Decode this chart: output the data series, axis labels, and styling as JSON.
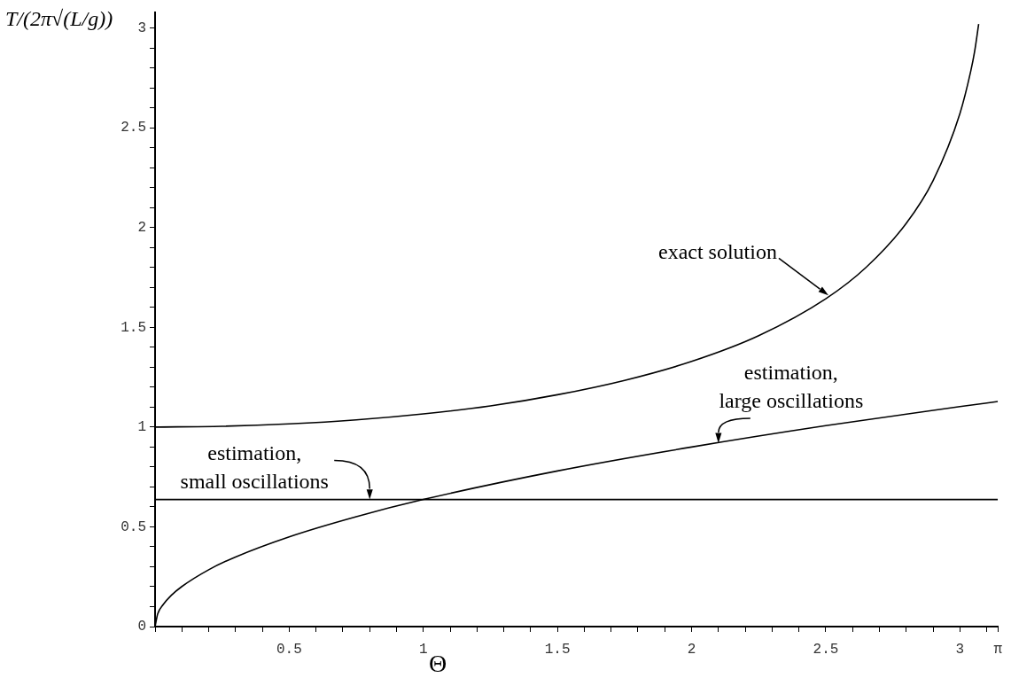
{
  "chart_data": {
    "type": "line",
    "ylabel": "T/(2π√(L/g))",
    "xlabel": "Θ",
    "xlim": [
      0,
      3.1416
    ],
    "ylim": [
      0,
      3.08
    ],
    "xticks": [
      {
        "value": 0,
        "label": null
      },
      {
        "value": 0.1,
        "label": null
      },
      {
        "value": 0.2,
        "label": null
      },
      {
        "value": 0.3,
        "label": null
      },
      {
        "value": 0.4,
        "label": null
      },
      0.5,
      {
        "value": 0.6,
        "label": null
      },
      {
        "value": 0.7,
        "label": null
      },
      {
        "value": 0.8,
        "label": null
      },
      {
        "value": 0.9,
        "label": null
      },
      1,
      {
        "value": 1.1,
        "label": null
      },
      {
        "value": 1.2,
        "label": null
      },
      {
        "value": 1.3,
        "label": null
      },
      {
        "value": 1.4,
        "label": null
      },
      1.5,
      {
        "value": 1.6,
        "label": null
      },
      {
        "value": 1.7,
        "label": null
      },
      {
        "value": 1.8,
        "label": null
      },
      {
        "value": 1.9,
        "label": null
      },
      2,
      {
        "value": 2.1,
        "label": null
      },
      {
        "value": 2.2,
        "label": null
      },
      {
        "value": 2.3,
        "label": null
      },
      {
        "value": 2.4,
        "label": null
      },
      2.5,
      {
        "value": 2.6,
        "label": null
      },
      {
        "value": 2.7,
        "label": null
      },
      {
        "value": 2.8,
        "label": null
      },
      {
        "value": 2.9,
        "label": null
      },
      3,
      {
        "value": 3.1,
        "label": null
      },
      {
        "value": 3.1416,
        "label": "π"
      }
    ],
    "yticks": [
      0,
      {
        "value": 0.1,
        "label": null
      },
      {
        "value": 0.2,
        "label": null
      },
      {
        "value": 0.3,
        "label": null
      },
      {
        "value": 0.4,
        "label": null
      },
      0.5,
      {
        "value": 0.6,
        "label": null
      },
      {
        "value": 0.7,
        "label": null
      },
      {
        "value": 0.8,
        "label": null
      },
      {
        "value": 0.9,
        "label": null
      },
      1,
      {
        "value": 1.1,
        "label": null
      },
      {
        "value": 1.2,
        "label": null
      },
      {
        "value": 1.3,
        "label": null
      },
      {
        "value": 1.4,
        "label": null
      },
      1.5,
      {
        "value": 1.6,
        "label": null
      },
      {
        "value": 1.7,
        "label": null
      },
      {
        "value": 1.8,
        "label": null
      },
      {
        "value": 1.9,
        "label": null
      },
      2,
      {
        "value": 2.1,
        "label": null
      },
      {
        "value": 2.2,
        "label": null
      },
      {
        "value": 2.3,
        "label": null
      },
      {
        "value": 2.4,
        "label": null
      },
      2.5,
      {
        "value": 2.6,
        "label": null
      },
      {
        "value": 2.7,
        "label": null
      },
      {
        "value": 2.8,
        "label": null
      },
      {
        "value": 2.9,
        "label": null
      },
      3
    ],
    "line_style": "solid",
    "series": [
      {
        "color": "#000000",
        "x": [
          0,
          0.25,
          0.5,
          0.75,
          1,
          1.25,
          1.5,
          1.75,
          2,
          2.25,
          2.5,
          2.65,
          2.8,
          2.9,
          3,
          3.04,
          3.055,
          3.07
        ],
        "values": [
          1,
          1.004,
          1.016,
          1.036,
          1.066,
          1.106,
          1.162,
          1.234,
          1.329,
          1.458,
          1.643,
          1.8,
          2.021,
          2.235,
          2.571,
          2.781,
          2.883,
          3.02
        ]
      },
      {
        "color": "#000000",
        "x": [
          0,
          0.01,
          0.03,
          0.06,
          0.1,
          0.2,
          0.3,
          0.5,
          0.75,
          1,
          1.5,
          2,
          2.5,
          3,
          3.1416
        ],
        "values": [
          0,
          0.064,
          0.11,
          0.156,
          0.201,
          0.285,
          0.349,
          0.45,
          0.551,
          0.637,
          0.78,
          0.9,
          1.007,
          1.103,
          1.128
        ]
      },
      {
        "color": "#000000",
        "x": [
          0,
          3.1416
        ],
        "values": [
          0.637,
          0.637
        ]
      }
    ],
    "annotations": [
      {
        "text": "exact solution",
        "x": 2.51,
        "y": 1.66
      },
      {
        "text": "estimation, large oscillations",
        "x": 2.1,
        "y": 0.92
      },
      {
        "text": "estimation, small oscillations",
        "x": 0.8,
        "y": 0.637
      }
    ]
  }
}
